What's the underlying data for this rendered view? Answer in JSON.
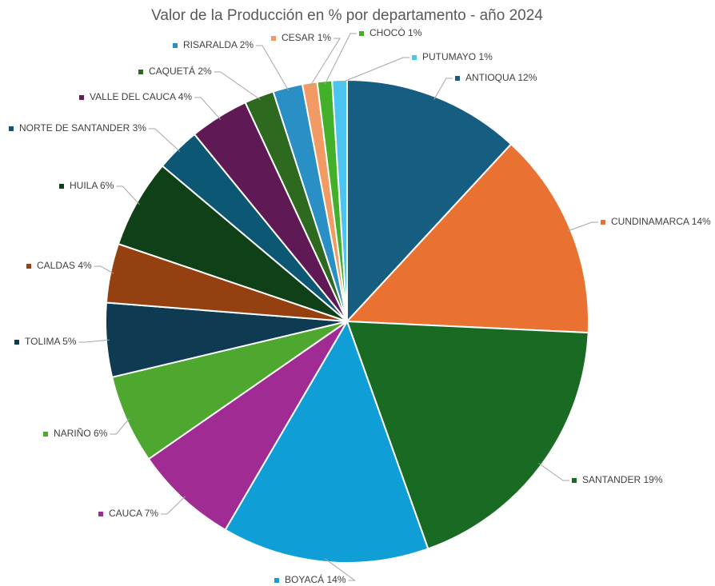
{
  "chart_data": {
    "type": "pie",
    "title": "Valor de la Producción en % por departamento - año 2024",
    "categories": [
      "ANTIOQUA",
      "CUNDINAMARCA",
      "SANTANDER",
      "BOYACÁ",
      "CAUCA",
      "NARIÑO",
      "TOLIMA",
      "CALDAS",
      "HUILA",
      "NORTE DE SANTANDER",
      "VALLE DEL CAUCA",
      "CAQUETÁ",
      "RISARALDA",
      "CESAR",
      "CHOCÓ",
      "PUTUMAYO"
    ],
    "values": [
      12,
      14,
      19,
      14,
      7,
      6,
      5,
      4,
      6,
      3,
      4,
      2,
      2,
      1,
      1,
      1
    ],
    "value_labels": [
      "12%",
      "14%",
      "19%",
      "14%",
      "7%",
      "6%",
      "5%",
      "4%",
      "6%",
      "3%",
      "4%",
      "2%",
      "2%",
      "1%",
      "1%",
      "1%"
    ],
    "colors": [
      "#165d82",
      "#e97132",
      "#196b24",
      "#0f9ed5",
      "#a02b93",
      "#4ea72e",
      "#0e3a52",
      "#954010",
      "#0f4017",
      "#0b5774",
      "#5f1a55",
      "#2d6a1f",
      "#2a8fc4",
      "#f19a63",
      "#43b02a",
      "#4bc4f0"
    ]
  }
}
